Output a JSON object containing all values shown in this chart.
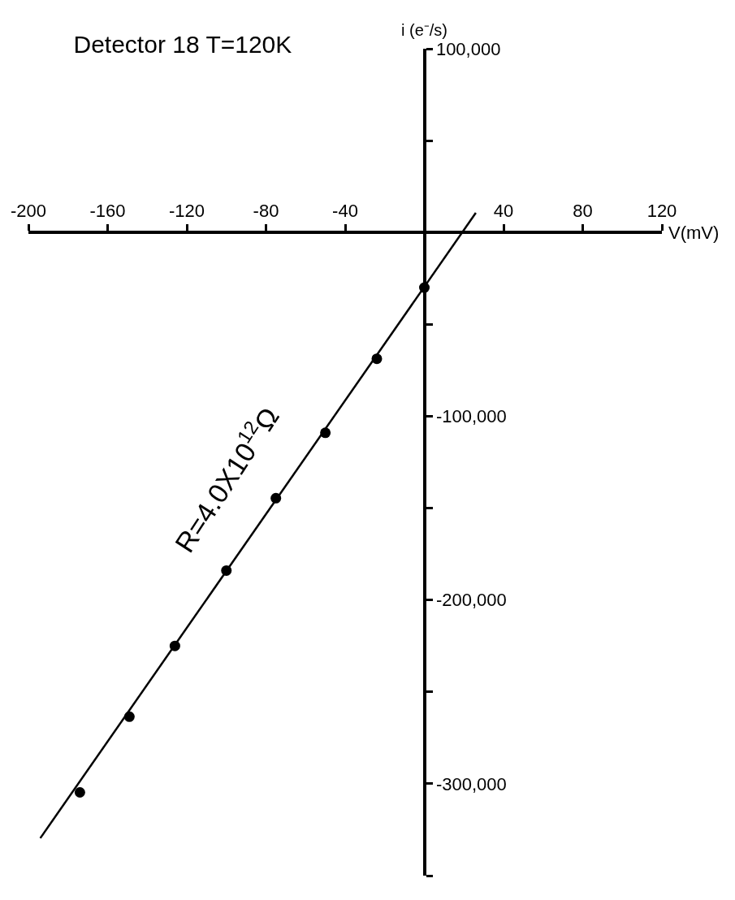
{
  "chart_data": {
    "type": "scatter",
    "title": "Detector 18 T=120K",
    "xlabel": "V(mV)",
    "ylabel": "i (e⁻/s)",
    "xlim": [
      -200,
      120
    ],
    "xticks": [
      -200,
      -160,
      -120,
      -80,
      -40,
      40,
      80,
      120
    ],
    "ylim": [
      -350000,
      100000
    ],
    "yticks": [
      {
        "value": 100000,
        "label": "100,000"
      },
      {
        "value": 50000,
        "label": null
      },
      {
        "value": -50000,
        "label": null
      },
      {
        "value": -100000,
        "label": "-100,000"
      },
      {
        "value": -150000,
        "label": null
      },
      {
        "value": -200000,
        "label": "-200,000"
      },
      {
        "value": -250000,
        "label": null
      },
      {
        "value": -300000,
        "label": "-300,000"
      },
      {
        "value": -350000,
        "label": null
      }
    ],
    "series": [
      {
        "color": "#000000",
        "marker": "circle",
        "x": [
          0,
          -24,
          -50,
          -75,
          -100,
          -126,
          -149,
          -174
        ],
        "values": [
          -30000,
          -68700,
          -109000,
          -144600,
          -184000,
          -225000,
          -263500,
          -304700
        ]
      },
      {
        "type": "line",
        "color": "#000000",
        "marker": "none",
        "line_style": "solid",
        "x": [
          -194,
          26
        ],
        "values": [
          -329600,
          10700
        ]
      }
    ],
    "annotations": [
      "R=4.0X10$^{12}$Ω"
    ]
  }
}
